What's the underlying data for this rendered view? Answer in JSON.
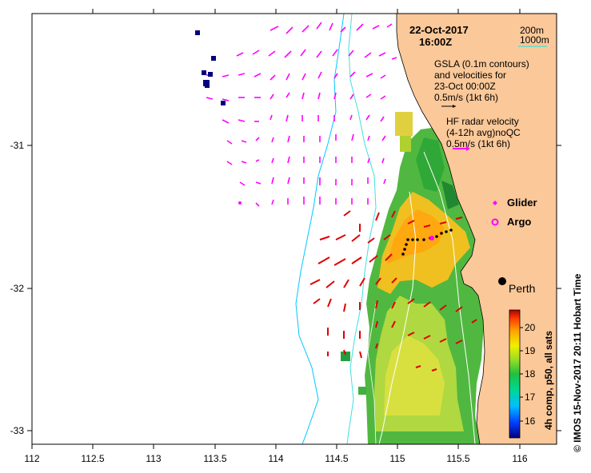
{
  "header": {
    "date": "22-Oct-2017",
    "time": "16:00Z"
  },
  "legend": {
    "isobath_200": "200m",
    "isobath_1000": "1000m",
    "gsla_lines": [
      "GSLA (0.1m contours)",
      "and velocities for",
      "23-Oct 00:00Z",
      "0.5m/s (1kt 6h)"
    ],
    "hf_lines": [
      "HF radar velocity",
      "(4-12h avg)noQC",
      "0.5m/s (1kt 6h)"
    ],
    "glider": "Glider",
    "argo": "Argo",
    "city": "Perth"
  },
  "colors": {
    "land": "#fbc899",
    "isobath_200": "#00c8ff",
    "isobath_1000": "#40e0e0",
    "hf_arrow": "#ff00ff",
    "gsla_arrow": "#e00000",
    "legend_arrow_gsla": "#000000",
    "glider": "#ff00ff",
    "argo": "#ff00ff"
  },
  "axes": {
    "x_ticks": [
      "112",
      "112.5",
      "113",
      "113.5",
      "114",
      "114.5",
      "115",
      "115.5",
      "116"
    ],
    "y_ticks": [
      "-31",
      "-32",
      "-33"
    ]
  },
  "colorbar": {
    "ticks": [
      "16",
      "17",
      "18",
      "19",
      "20"
    ],
    "title": "4h comp, p50, all sats",
    "range": [
      15.5,
      20.7
    ]
  },
  "credit": "© IMOS 15-Nov-2017 20:11 Hobart Time"
}
